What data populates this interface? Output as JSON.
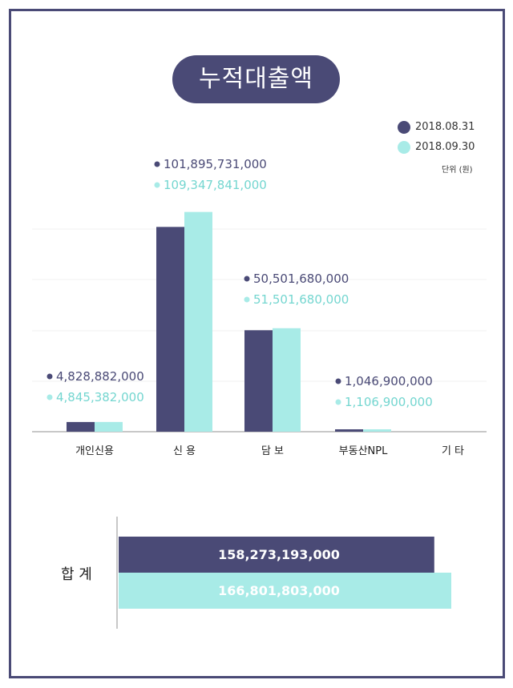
{
  "title": "누적대출액",
  "legend": [
    {
      "label": "2018.08.31",
      "color": "#4a4a76"
    },
    {
      "label": "2018.09.30",
      "color": "#a8ebe7"
    }
  ],
  "unit_note": "단위 (원)",
  "total": {
    "label": "합 계",
    "values": [
      "158,273,193,000",
      "166,801,803,000"
    ]
  },
  "chart_data": [
    {
      "type": "bar",
      "categories": [
        "개인신용",
        "신 용",
        "담 보",
        "부동산NPL",
        "기 타"
      ],
      "series": [
        {
          "name": "2018.08.31",
          "color": "#4a4a76",
          "values": [
            4828882000,
            101895731000,
            50501680000,
            1046900000,
            0
          ],
          "labels": [
            "4,828,882,000",
            "101,895,731,000",
            "50,501,680,000",
            "1,046,900,000",
            ""
          ]
        },
        {
          "name": "2018.09.30",
          "color": "#a8ebe7",
          "values": [
            4845382000,
            109347841000,
            51501680000,
            1106900000,
            0
          ],
          "labels": [
            "4,845,382,000",
            "109,347,841,000",
            "51,501,680,000",
            "1,106,900,000",
            ""
          ]
        }
      ],
      "ylim": [
        0,
        110000000000
      ],
      "grid": true
    },
    {
      "type": "bar",
      "orientation": "horizontal",
      "categories": [
        "합 계"
      ],
      "series": [
        {
          "name": "2018.08.31",
          "color": "#4a4a76",
          "values": [
            158273193000
          ],
          "labels": [
            "158,273,193,000"
          ]
        },
        {
          "name": "2018.09.30",
          "color": "#a8ebe7",
          "values": [
            166801803000
          ],
          "labels": [
            "166,801,803,000"
          ]
        }
      ]
    }
  ]
}
